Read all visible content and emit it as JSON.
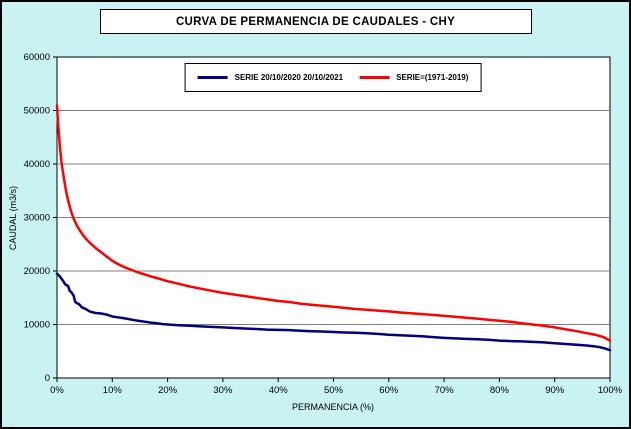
{
  "colors": {
    "background": "#C9F2F2",
    "plot_background": "#FFFFFF",
    "gridline": "#808080",
    "axis": "#000000",
    "series1": "#000080",
    "series2": "#FF0000"
  },
  "chart_data": {
    "type": "line",
    "title": "CURVA DE PERMANENCIA DE CAUDALES - CHY",
    "xlabel": "PERMANENCIA (%)",
    "ylabel": "CAUDAL (m3/s)",
    "xlim": [
      0,
      100
    ],
    "ylim": [
      0,
      60000
    ],
    "grid": "horizontal",
    "legend_position": "top-inside",
    "x_tick_values": [
      0,
      10,
      20,
      30,
      40,
      50,
      60,
      70,
      80,
      90,
      100
    ],
    "x_ticks": [
      "0%",
      "10%",
      "20%",
      "30%",
      "40%",
      "50%",
      "60%",
      "70%",
      "80%",
      "90%",
      "100%"
    ],
    "y_tick_values": [
      0,
      10000,
      20000,
      30000,
      40000,
      50000,
      60000
    ],
    "y_ticks": [
      "0",
      "10000",
      "20000",
      "30000",
      "40000",
      "50000",
      "60000"
    ],
    "series": [
      {
        "name": "SERIE 20/10/2020 20/10/2021",
        "color": "#000080",
        "points": [
          [
            0,
            19500
          ],
          [
            0.5,
            19000
          ],
          [
            1,
            18300
          ],
          [
            1.5,
            17500
          ],
          [
            2,
            17200
          ],
          [
            2.3,
            16300
          ],
          [
            2.6,
            16000
          ],
          [
            3,
            15400
          ],
          [
            3.3,
            14200
          ],
          [
            3.6,
            14000
          ],
          [
            4,
            13800
          ],
          [
            4.5,
            13200
          ],
          [
            5,
            13000
          ],
          [
            5.5,
            12700
          ],
          [
            6,
            12400
          ],
          [
            7,
            12150
          ],
          [
            8,
            12050
          ],
          [
            9,
            11850
          ],
          [
            10,
            11500
          ],
          [
            11,
            11350
          ],
          [
            12,
            11200
          ],
          [
            13,
            11000
          ],
          [
            14,
            10800
          ],
          [
            15,
            10650
          ],
          [
            16,
            10500
          ],
          [
            17,
            10350
          ],
          [
            18,
            10250
          ],
          [
            19,
            10100
          ],
          [
            20,
            10000
          ],
          [
            22,
            9850
          ],
          [
            24,
            9750
          ],
          [
            26,
            9650
          ],
          [
            28,
            9550
          ],
          [
            30,
            9450
          ],
          [
            32,
            9350
          ],
          [
            34,
            9250
          ],
          [
            36,
            9150
          ],
          [
            38,
            9050
          ],
          [
            40,
            9000
          ],
          [
            42,
            8950
          ],
          [
            44,
            8850
          ],
          [
            46,
            8750
          ],
          [
            48,
            8700
          ],
          [
            50,
            8600
          ],
          [
            52,
            8500
          ],
          [
            54,
            8450
          ],
          [
            56,
            8350
          ],
          [
            58,
            8250
          ],
          [
            60,
            8100
          ],
          [
            62,
            8000
          ],
          [
            64,
            7900
          ],
          [
            66,
            7800
          ],
          [
            68,
            7650
          ],
          [
            70,
            7500
          ],
          [
            72,
            7400
          ],
          [
            74,
            7300
          ],
          [
            76,
            7250
          ],
          [
            78,
            7150
          ],
          [
            80,
            7000
          ],
          [
            82,
            6900
          ],
          [
            84,
            6850
          ],
          [
            86,
            6750
          ],
          [
            88,
            6650
          ],
          [
            90,
            6500
          ],
          [
            92,
            6350
          ],
          [
            94,
            6200
          ],
          [
            96,
            6050
          ],
          [
            97,
            5950
          ],
          [
            98,
            5800
          ],
          [
            99,
            5550
          ],
          [
            100,
            5200
          ]
        ]
      },
      {
        "name": "SERIE=(1971-2019)",
        "color": "#FF0000",
        "points": [
          [
            0,
            51000
          ],
          [
            0.2,
            47500
          ],
          [
            0.5,
            43500
          ],
          [
            0.8,
            40500
          ],
          [
            1,
            39000
          ],
          [
            1.3,
            37000
          ],
          [
            1.6,
            35200
          ],
          [
            2,
            33200
          ],
          [
            2.5,
            31300
          ],
          [
            3,
            29800
          ],
          [
            3.5,
            28700
          ],
          [
            4,
            27800
          ],
          [
            4.5,
            27000
          ],
          [
            5,
            26300
          ],
          [
            6,
            25200
          ],
          [
            7,
            24300
          ],
          [
            8,
            23500
          ],
          [
            9,
            22700
          ],
          [
            10,
            21900
          ],
          [
            11,
            21300
          ],
          [
            12,
            20800
          ],
          [
            13,
            20400
          ],
          [
            14,
            20000
          ],
          [
            15,
            19600
          ],
          [
            16,
            19300
          ],
          [
            17,
            19000
          ],
          [
            18,
            18700
          ],
          [
            19,
            18400
          ],
          [
            20,
            18100
          ],
          [
            22,
            17600
          ],
          [
            24,
            17100
          ],
          [
            26,
            16700
          ],
          [
            28,
            16300
          ],
          [
            30,
            15900
          ],
          [
            32,
            15600
          ],
          [
            34,
            15300
          ],
          [
            36,
            15000
          ],
          [
            38,
            14700
          ],
          [
            40,
            14400
          ],
          [
            42,
            14200
          ],
          [
            44,
            13900
          ],
          [
            46,
            13700
          ],
          [
            48,
            13500
          ],
          [
            50,
            13300
          ],
          [
            52,
            13100
          ],
          [
            54,
            12900
          ],
          [
            56,
            12750
          ],
          [
            58,
            12600
          ],
          [
            60,
            12450
          ],
          [
            62,
            12250
          ],
          [
            64,
            12100
          ],
          [
            66,
            11950
          ],
          [
            68,
            11800
          ],
          [
            70,
            11600
          ],
          [
            72,
            11450
          ],
          [
            74,
            11250
          ],
          [
            76,
            11100
          ],
          [
            78,
            10900
          ],
          [
            80,
            10700
          ],
          [
            82,
            10500
          ],
          [
            84,
            10250
          ],
          [
            86,
            10000
          ],
          [
            88,
            9750
          ],
          [
            90,
            9450
          ],
          [
            92,
            9100
          ],
          [
            94,
            8750
          ],
          [
            95,
            8550
          ],
          [
            96,
            8350
          ],
          [
            97,
            8150
          ],
          [
            98,
            7900
          ],
          [
            99,
            7550
          ],
          [
            100,
            7000
          ]
        ]
      }
    ]
  }
}
